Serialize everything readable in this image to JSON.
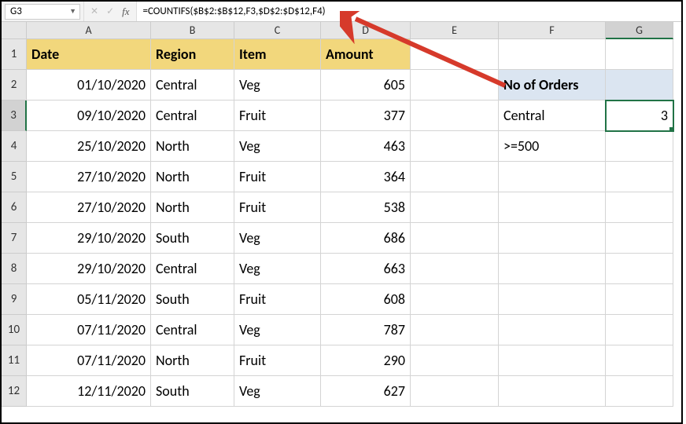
{
  "nameBox": "G3",
  "formula": "=COUNTIFS($B$2:$B$12,F3,$D$2:$D$12,F4)",
  "colHeaders": [
    "A",
    "B",
    "C",
    "D",
    "E",
    "F",
    "G"
  ],
  "rowHeaders": [
    "1",
    "2",
    "3",
    "4",
    "5",
    "6",
    "7",
    "8",
    "9",
    "10",
    "11",
    "12"
  ],
  "selectedCol": "G",
  "selectedRow": "3",
  "headers": {
    "A": "Date",
    "B": "Region",
    "C": "Item",
    "D": "Amount"
  },
  "rows": [
    {
      "date": "01/10/2020",
      "region": "Central",
      "item": "Veg",
      "amount": "605"
    },
    {
      "date": "09/10/2020",
      "region": "Central",
      "item": "Fruit",
      "amount": "377"
    },
    {
      "date": "25/10/2020",
      "region": "North",
      "item": "Veg",
      "amount": "463"
    },
    {
      "date": "27/10/2020",
      "region": "North",
      "item": "Fruit",
      "amount": "364"
    },
    {
      "date": "27/10/2020",
      "region": "North",
      "item": "Fruit",
      "amount": "538"
    },
    {
      "date": "29/10/2020",
      "region": "South",
      "item": "Veg",
      "amount": "686"
    },
    {
      "date": "29/10/2020",
      "region": "Central",
      "item": "Veg",
      "amount": "663"
    },
    {
      "date": "05/11/2020",
      "region": "South",
      "item": "Fruit",
      "amount": "608"
    },
    {
      "date": "07/11/2020",
      "region": "Central",
      "item": "Veg",
      "amount": "787"
    },
    {
      "date": "07/11/2020",
      "region": "North",
      "item": "Fruit",
      "amount": "290"
    },
    {
      "date": "12/11/2020",
      "region": "South",
      "item": "Veg",
      "amount": "627"
    }
  ],
  "side": {
    "title": "No of Orders",
    "criteria1": "Central",
    "criteria2": ">=500",
    "result": "3"
  },
  "colors": {
    "headerFill": "#f2d77c",
    "sideHeaderFill": "#dbe5f1",
    "gridLine": "#d4d4d4",
    "hdrBg": "#e6e6e6",
    "selectGreen": "#217346",
    "arrow": "#d63a2b"
  }
}
